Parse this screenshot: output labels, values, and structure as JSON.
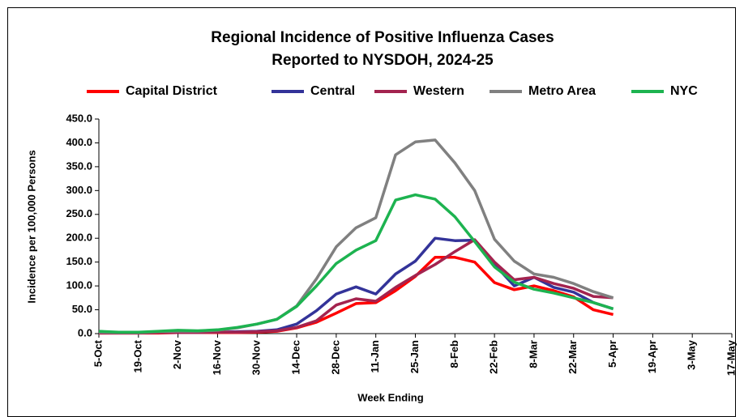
{
  "chart_data": {
    "type": "line",
    "title": [
      "Regional Incidence of Positive Influenza Cases",
      "Reported to NYSDOH, 2024-25"
    ],
    "x_label": "Week Ending",
    "y_label": "Incidence  per 100,000 Persons",
    "categories": [
      "5-Oct",
      null,
      "19-Oct",
      null,
      "2-Nov",
      null,
      "16-Nov",
      null,
      "30-Nov",
      null,
      "14-Dec",
      null,
      "28-Dec",
      null,
      "11-Jan",
      null,
      "25-Jan",
      null,
      "8-Feb",
      null,
      "22-Feb",
      null,
      "8-Mar",
      null,
      "22-Mar",
      null,
      "5-Apr",
      null,
      "19-Apr",
      null,
      "3-May",
      null,
      "17-May"
    ],
    "series": [
      {
        "name": "Capital District",
        "color": "#ff0000",
        "values": [
          1,
          1,
          1,
          1,
          2,
          2,
          2,
          2,
          3,
          5,
          12,
          24,
          43,
          63,
          65,
          90,
          120,
          160,
          160,
          150,
          107,
          92,
          100,
          90,
          77,
          50,
          40,
          null,
          null,
          null,
          null,
          null,
          null
        ]
      },
      {
        "name": "Central",
        "color": "#333399",
        "values": [
          2,
          2,
          2,
          3,
          3,
          3,
          3,
          4,
          5,
          8,
          20,
          48,
          83,
          98,
          83,
          125,
          152,
          200,
          195,
          196,
          145,
          100,
          118,
          97,
          87,
          65,
          52,
          null,
          null,
          null,
          null,
          null,
          null
        ]
      },
      {
        "name": "Western",
        "color": "#a3234f",
        "values": [
          1,
          1,
          1,
          2,
          2,
          2,
          3,
          3,
          4,
          6,
          13,
          27,
          60,
          73,
          68,
          97,
          122,
          145,
          172,
          197,
          150,
          113,
          118,
          105,
          95,
          78,
          75,
          null,
          null,
          null,
          null,
          null,
          null
        ]
      },
      {
        "name": "Metro Area",
        "color": "#808080",
        "values": [
          3,
          2,
          2,
          4,
          5,
          5,
          7,
          12,
          20,
          30,
          58,
          115,
          182,
          222,
          243,
          375,
          402,
          406,
          358,
          300,
          198,
          152,
          125,
          118,
          105,
          88,
          75,
          null,
          null,
          null,
          null,
          null,
          null
        ]
      },
      {
        "name": "NYC",
        "color": "#1db350",
        "values": [
          5,
          3,
          3,
          5,
          7,
          6,
          8,
          13,
          20,
          30,
          57,
          100,
          147,
          175,
          195,
          280,
          291,
          282,
          245,
          193,
          140,
          108,
          93,
          85,
          75,
          65,
          52,
          null,
          null,
          null,
          null,
          null,
          null
        ]
      }
    ],
    "ylim": [
      0,
      450
    ],
    "yticks": [
      {
        "value": 0,
        "label": "0.0"
      },
      {
        "value": 50,
        "label": "50.0"
      },
      {
        "value": 100,
        "label": "100.0"
      },
      {
        "value": 150,
        "label": "150.0"
      },
      {
        "value": 200,
        "label": "200.0"
      },
      {
        "value": 250,
        "label": "250.0"
      },
      {
        "value": 300,
        "label": "300.0"
      },
      {
        "value": 350,
        "label": "350.0"
      },
      {
        "value": 400,
        "label": "400.0"
      },
      {
        "value": 450,
        "label": "450.0"
      }
    ],
    "grid": false,
    "legend": "top"
  }
}
